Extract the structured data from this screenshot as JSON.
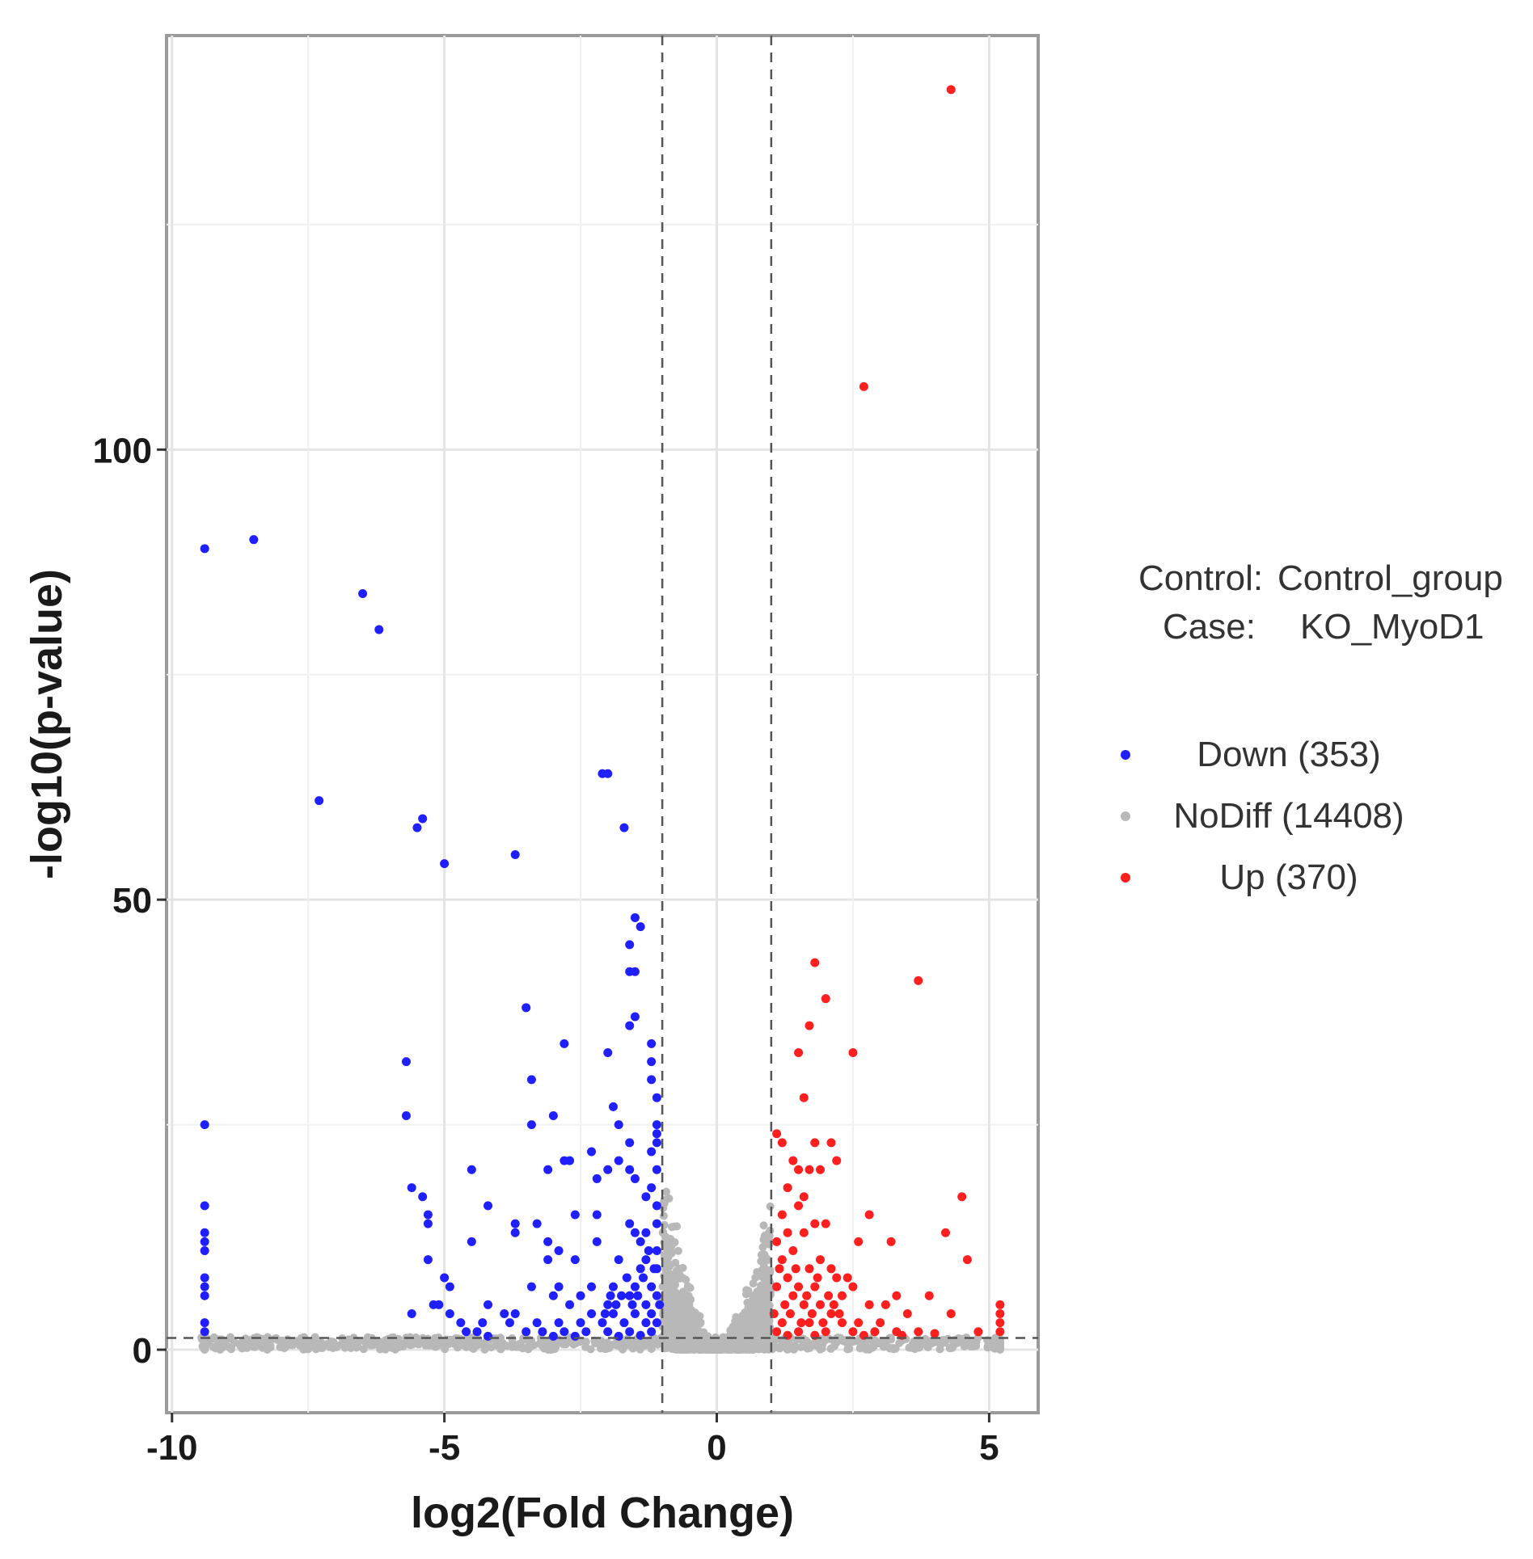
{
  "chart_data": {
    "type": "scatter",
    "xlabel": "log2(Fold Change)",
    "ylabel": "-log10(p-value)",
    "xlim": [
      -10.1,
      5.9
    ],
    "ylim": [
      -7,
      146
    ],
    "x_ticks": [
      {
        "value": -10,
        "label": "-10"
      },
      {
        "value": -5,
        "label": "-5"
      },
      {
        "value": 0,
        "label": "0"
      },
      {
        "value": 5,
        "label": "5"
      }
    ],
    "y_ticks": [
      {
        "value": 0,
        "label": "0"
      },
      {
        "value": 50,
        "label": "50"
      },
      {
        "value": 100,
        "label": "100"
      }
    ],
    "y_minor_grid": [
      25,
      75,
      125
    ],
    "x_minor_grid": [
      -7.5,
      -2.5,
      2.5
    ],
    "grid": true,
    "thresholds": {
      "log2fc": [
        -1,
        1
      ],
      "neg_log10_p": 1.3
    },
    "comparison": {
      "control_label": "Control:",
      "control_value": "Control_group",
      "case_label": "Case:",
      "case_value": "KO_MyoD1"
    },
    "legend_position": "right",
    "series": [
      {
        "name": "Down (353)",
        "color": "#1f1fff",
        "points": [
          [
            -9.4,
            89
          ],
          [
            -8.5,
            90
          ],
          [
            -6.5,
            84
          ],
          [
            -6.2,
            80
          ],
          [
            -7.3,
            61
          ],
          [
            -5.4,
            59
          ],
          [
            -5.5,
            58
          ],
          [
            -5.0,
            54
          ],
          [
            -3.7,
            55
          ],
          [
            -2.1,
            64
          ],
          [
            -2.0,
            64
          ],
          [
            -1.7,
            58
          ],
          [
            -1.5,
            48
          ],
          [
            -1.4,
            47
          ],
          [
            -1.6,
            45
          ],
          [
            -1.6,
            42
          ],
          [
            -1.5,
            42
          ],
          [
            -3.5,
            38
          ],
          [
            -1.5,
            37
          ],
          [
            -1.6,
            36
          ],
          [
            -2.8,
            34
          ],
          [
            -2.0,
            33
          ],
          [
            -1.2,
            34
          ],
          [
            -1.2,
            32
          ],
          [
            -5.7,
            32
          ],
          [
            -3.4,
            30
          ],
          [
            -1.2,
            30
          ],
          [
            -1.1,
            28
          ],
          [
            -1.9,
            27
          ],
          [
            -5.7,
            26
          ],
          [
            -9.4,
            25
          ],
          [
            -3.0,
            26
          ],
          [
            -3.4,
            25
          ],
          [
            -1.8,
            25
          ],
          [
            -1.1,
            25
          ],
          [
            -1.1,
            24
          ],
          [
            -1.6,
            23
          ],
          [
            -1.1,
            23
          ],
          [
            -2.3,
            22
          ],
          [
            -1.2,
            22
          ],
          [
            -2.7,
            21
          ],
          [
            -2.8,
            21
          ],
          [
            -2.0,
            20
          ],
          [
            -1.8,
            21
          ],
          [
            -1.6,
            20
          ],
          [
            -1.1,
            20
          ],
          [
            -4.5,
            20
          ],
          [
            -3.1,
            20
          ],
          [
            -2.2,
            19
          ],
          [
            -1.5,
            19
          ],
          [
            -1.2,
            18
          ],
          [
            -5.6,
            18
          ],
          [
            -5.4,
            17
          ],
          [
            -1.3,
            17
          ],
          [
            -1.1,
            16
          ],
          [
            -4.2,
            16
          ],
          [
            -9.4,
            16
          ],
          [
            -2.6,
            15
          ],
          [
            -2.2,
            15
          ],
          [
            -1.6,
            14
          ],
          [
            -1.1,
            14
          ],
          [
            -5.3,
            15
          ],
          [
            -5.3,
            14
          ],
          [
            -3.7,
            14
          ],
          [
            -3.3,
            14
          ],
          [
            -1.5,
            13
          ],
          [
            -1.3,
            13
          ],
          [
            -9.4,
            13
          ],
          [
            -9.4,
            12
          ],
          [
            -9.4,
            11
          ],
          [
            -3.7,
            13
          ],
          [
            -4.5,
            12
          ],
          [
            -3.1,
            12
          ],
          [
            -2.9,
            11
          ],
          [
            -2.2,
            12
          ],
          [
            -1.4,
            12
          ],
          [
            -1.1,
            11
          ],
          [
            -1.3,
            10
          ],
          [
            -5.3,
            10
          ],
          [
            -3.1,
            10
          ],
          [
            -2.6,
            10
          ],
          [
            -1.8,
            10
          ],
          [
            -1.4,
            9
          ],
          [
            -1.1,
            9
          ],
          [
            -5.0,
            8
          ],
          [
            -4.9,
            7
          ],
          [
            -9.4,
            8
          ],
          [
            -9.4,
            7
          ],
          [
            -9.4,
            6
          ],
          [
            -3.4,
            7
          ],
          [
            -2.9,
            7
          ],
          [
            -2.3,
            7
          ],
          [
            -1.9,
            7
          ],
          [
            -1.5,
            7
          ],
          [
            -1.2,
            7
          ],
          [
            -3.0,
            6
          ],
          [
            -2.5,
            6
          ],
          [
            -2.0,
            5
          ],
          [
            -1.6,
            6
          ],
          [
            -1.3,
            5
          ],
          [
            -1.1,
            6
          ],
          [
            -5.2,
            5
          ],
          [
            -5.1,
            5
          ],
          [
            -4.2,
            5
          ],
          [
            -3.9,
            4
          ],
          [
            -3.7,
            4
          ],
          [
            -2.7,
            5
          ],
          [
            -2.3,
            4
          ],
          [
            -1.9,
            4
          ],
          [
            -1.5,
            4
          ],
          [
            -1.2,
            4
          ],
          [
            -1.05,
            5
          ],
          [
            -5.6,
            4
          ],
          [
            -4.9,
            4
          ],
          [
            -4.7,
            3
          ],
          [
            -4.3,
            3
          ],
          [
            -3.8,
            3
          ],
          [
            -3.3,
            3
          ],
          [
            -2.9,
            3
          ],
          [
            -2.5,
            3
          ],
          [
            -2.1,
            3
          ],
          [
            -1.7,
            3
          ],
          [
            -1.3,
            3
          ],
          [
            -1.1,
            3
          ],
          [
            -9.4,
            3
          ],
          [
            -9.4,
            2
          ],
          [
            -4.6,
            2
          ],
          [
            -4.4,
            2
          ],
          [
            -3.5,
            2
          ],
          [
            -3.2,
            2
          ],
          [
            -2.8,
            2
          ],
          [
            -2.4,
            2
          ],
          [
            -2.0,
            2
          ],
          [
            -1.6,
            2
          ],
          [
            -1.2,
            2
          ],
          [
            -4.2,
            1.5
          ],
          [
            -3.0,
            1.5
          ],
          [
            -2.6,
            1.5
          ],
          [
            -1.8,
            1.5
          ],
          [
            -1.4,
            1.6
          ],
          [
            -1.15,
            9
          ],
          [
            -1.25,
            11
          ],
          [
            -1.35,
            8
          ],
          [
            -1.45,
            6
          ],
          [
            -1.55,
            5
          ],
          [
            -1.65,
            8
          ],
          [
            -1.75,
            6
          ],
          [
            -1.85,
            5
          ],
          [
            -1.95,
            6
          ],
          [
            -2.05,
            4
          ]
        ]
      },
      {
        "name": "NoDiff (14408)",
        "color": "#b8b8b8",
        "points": []
      },
      {
        "name": "Up (370)",
        "color": "#ff1f1f",
        "points": [
          [
            4.3,
            140
          ],
          [
            2.7,
            107
          ],
          [
            1.8,
            43
          ],
          [
            3.7,
            41
          ],
          [
            2.0,
            39
          ],
          [
            1.7,
            36
          ],
          [
            2.5,
            33
          ],
          [
            1.5,
            33
          ],
          [
            1.6,
            28
          ],
          [
            1.1,
            24
          ],
          [
            1.2,
            23
          ],
          [
            1.8,
            23
          ],
          [
            2.1,
            23
          ],
          [
            2.2,
            21
          ],
          [
            1.4,
            21
          ],
          [
            1.5,
            20
          ],
          [
            1.7,
            20
          ],
          [
            1.9,
            20
          ],
          [
            1.3,
            18
          ],
          [
            1.6,
            17
          ],
          [
            4.5,
            17
          ],
          [
            1.5,
            16
          ],
          [
            1.2,
            15
          ],
          [
            2.8,
            15
          ],
          [
            1.8,
            14
          ],
          [
            2.0,
            14
          ],
          [
            4.2,
            13
          ],
          [
            1.3,
            13
          ],
          [
            1.6,
            13
          ],
          [
            2.6,
            12
          ],
          [
            1.1,
            12
          ],
          [
            3.2,
            12
          ],
          [
            4.6,
            10
          ],
          [
            1.4,
            11
          ],
          [
            1.9,
            10
          ],
          [
            1.2,
            10
          ],
          [
            1.7,
            9
          ],
          [
            2.1,
            9
          ],
          [
            2.4,
            8
          ],
          [
            2.2,
            8
          ],
          [
            2.5,
            7
          ],
          [
            1.3,
            8
          ],
          [
            1.5,
            7
          ],
          [
            1.8,
            7
          ],
          [
            1.1,
            7
          ],
          [
            3.3,
            6
          ],
          [
            3.9,
            6
          ],
          [
            2.3,
            6
          ],
          [
            2.8,
            5
          ],
          [
            3.1,
            5
          ],
          [
            1.4,
            6
          ],
          [
            1.6,
            5
          ],
          [
            1.9,
            5
          ],
          [
            2.1,
            4
          ],
          [
            4.3,
            4
          ],
          [
            5.2,
            5
          ],
          [
            5.2,
            4
          ],
          [
            5.2,
            3
          ],
          [
            5.2,
            2
          ],
          [
            3.5,
            4
          ],
          [
            3.0,
            3
          ],
          [
            2.6,
            3
          ],
          [
            2.3,
            3
          ],
          [
            1.7,
            3
          ],
          [
            1.2,
            3
          ],
          [
            1.05,
            4
          ],
          [
            3.7,
            2
          ],
          [
            3.3,
            2
          ],
          [
            2.9,
            2
          ],
          [
            2.5,
            2
          ],
          [
            2.0,
            2
          ],
          [
            1.5,
            2
          ],
          [
            1.1,
            2
          ],
          [
            4.0,
            1.8
          ],
          [
            4.8,
            2
          ],
          [
            3.4,
            1.6
          ],
          [
            2.7,
            1.6
          ],
          [
            1.8,
            1.6
          ],
          [
            1.3,
            1.6
          ],
          [
            1.15,
            9
          ],
          [
            1.25,
            5
          ],
          [
            1.35,
            4
          ],
          [
            1.45,
            9
          ],
          [
            1.55,
            3
          ],
          [
            1.65,
            6
          ],
          [
            1.75,
            4
          ],
          [
            1.85,
            8
          ],
          [
            1.95,
            3
          ],
          [
            2.05,
            6
          ],
          [
            2.15,
            5
          ],
          [
            2.25,
            4
          ]
        ]
      }
    ]
  }
}
